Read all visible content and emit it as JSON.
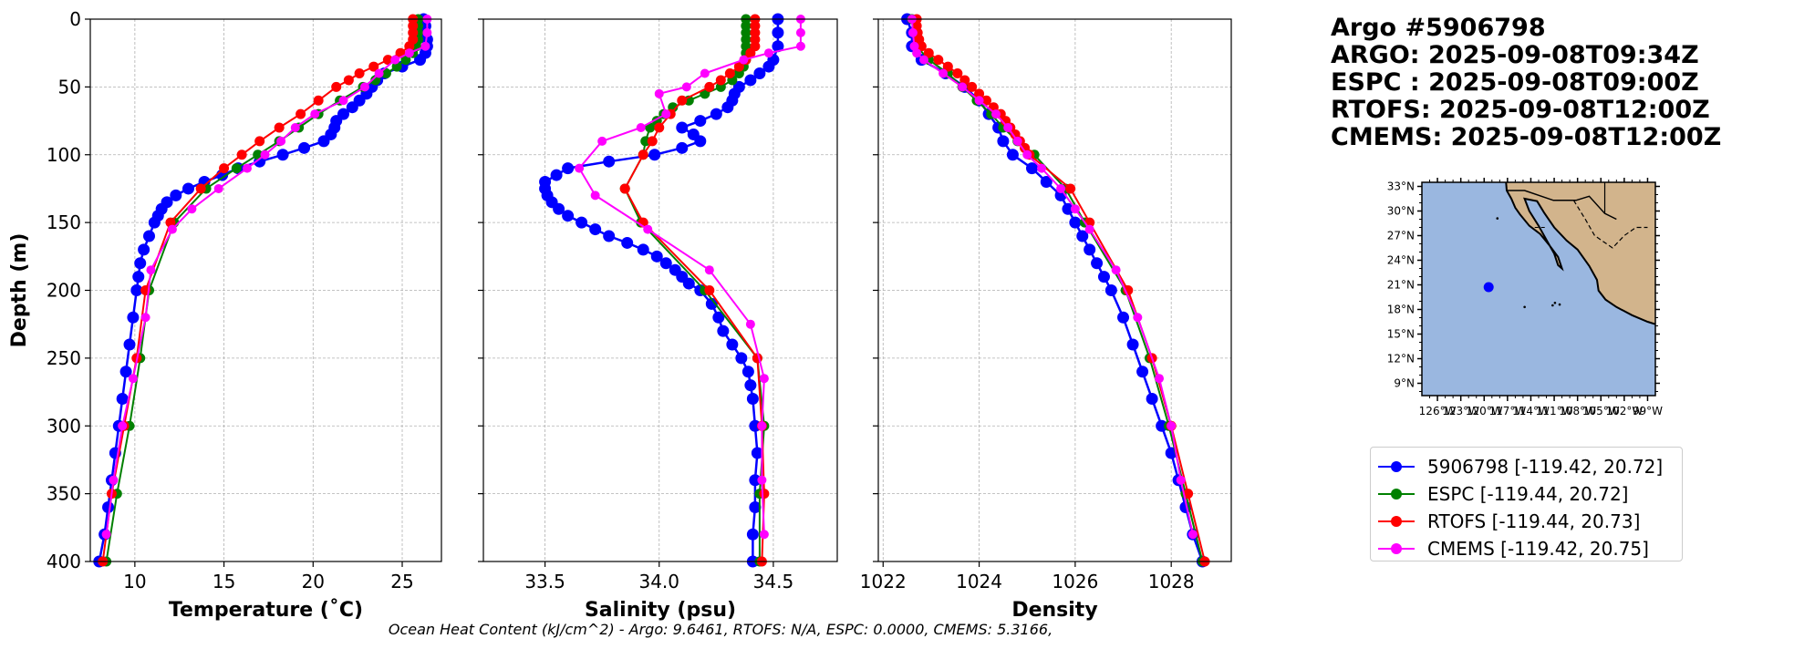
{
  "header": {
    "lines": [
      "Argo #5906798",
      "ARGO: 2025-09-08T09:34Z",
      "ESPC : 2025-09-08T09:00Z",
      "RTOFS: 2025-09-08T12:00Z",
      "CMEMS: 2025-09-08T12:00Z"
    ]
  },
  "footer": {
    "ohc": "Ocean Heat Content (kJ/cm^2) - Argo: 9.6461,  RTOFS: N/A,  ESPC: 0.0000,  CMEMS: 5.3166,"
  },
  "colors": {
    "argo": "#0000ff",
    "espc": "#008000",
    "rtofs": "#ff0000",
    "cmems": "#ff00ff",
    "ocean": "#9ab7e0",
    "land": "#d2b48c"
  },
  "legend": [
    {
      "label": "5906798 [-119.42, 20.72]",
      "color": "#0000ff"
    },
    {
      "label": "ESPC [-119.44, 20.72]",
      "color": "#008000"
    },
    {
      "label": "RTOFS [-119.44, 20.73]",
      "color": "#ff0000"
    },
    {
      "label": "CMEMS [-119.42, 20.75]",
      "color": "#ff00ff"
    }
  ],
  "chart_data": [
    {
      "type": "line",
      "panel": "temperature",
      "xlabel": "Temperature (˚C)",
      "ylabel": "Depth (m)",
      "xlim": [
        7.5,
        27.2
      ],
      "ylim": [
        400,
        0
      ],
      "xticks": [
        10,
        15,
        20,
        25
      ],
      "yticks": [
        0,
        50,
        100,
        150,
        200,
        250,
        300,
        350,
        400
      ],
      "grid": true,
      "series": [
        {
          "name": "5906798",
          "color": "#0000ff",
          "depth": [
            0,
            5,
            10,
            15,
            20,
            25,
            30,
            35,
            40,
            45,
            50,
            55,
            60,
            65,
            70,
            75,
            80,
            85,
            90,
            95,
            100,
            105,
            110,
            115,
            120,
            125,
            130,
            135,
            140,
            145,
            150,
            160,
            170,
            180,
            190,
            200,
            220,
            240,
            260,
            280,
            300,
            320,
            340,
            360,
            380,
            400
          ],
          "values": [
            26.2,
            26.3,
            26.3,
            26.4,
            26.4,
            26.3,
            26.0,
            25.0,
            24.0,
            23.6,
            23.3,
            23.0,
            22.6,
            22.2,
            21.7,
            21.3,
            21.2,
            21.0,
            20.6,
            19.5,
            18.3,
            17.0,
            15.8,
            14.9,
            13.9,
            13.0,
            12.3,
            11.8,
            11.5,
            11.3,
            11.1,
            10.8,
            10.5,
            10.3,
            10.2,
            10.1,
            9.9,
            9.7,
            9.5,
            9.3,
            9.1,
            8.9,
            8.7,
            8.5,
            8.3,
            8.0
          ]
        },
        {
          "name": "ESPC",
          "color": "#008000",
          "depth": [
            0,
            5,
            10,
            15,
            20,
            25,
            30,
            35,
            40,
            45,
            50,
            60,
            70,
            80,
            90,
            100,
            110,
            125,
            150,
            200,
            250,
            300,
            350,
            400
          ],
          "values": [
            25.9,
            25.9,
            25.9,
            25.9,
            25.8,
            25.6,
            25.2,
            24.7,
            24.1,
            23.5,
            22.8,
            21.5,
            20.3,
            19.2,
            18.1,
            16.9,
            15.7,
            14.0,
            12.2,
            10.8,
            10.3,
            9.7,
            9.0,
            8.4
          ]
        },
        {
          "name": "RTOFS",
          "color": "#ff0000",
          "depth": [
            0,
            5,
            10,
            15,
            20,
            25,
            30,
            35,
            40,
            45,
            50,
            60,
            70,
            80,
            90,
            100,
            110,
            125,
            150,
            200,
            250,
            300,
            350,
            400
          ],
          "values": [
            25.6,
            25.6,
            25.6,
            25.6,
            25.4,
            24.9,
            24.2,
            23.4,
            22.6,
            22.0,
            21.3,
            20.3,
            19.3,
            18.1,
            17.0,
            16.0,
            15.0,
            13.7,
            12.0,
            10.6,
            10.1,
            9.4,
            8.7,
            8.2
          ]
        },
        {
          "name": "CMEMS",
          "color": "#ff00ff",
          "depth": [
            0,
            10,
            20,
            25,
            30,
            40,
            50,
            60,
            70,
            80,
            90,
            100,
            110,
            125,
            140,
            155,
            185,
            220,
            265,
            300,
            340,
            380
          ],
          "values": [
            26.4,
            26.4,
            26.3,
            25.4,
            24.6,
            23.7,
            22.9,
            21.7,
            20.1,
            19.0,
            18.2,
            17.3,
            16.3,
            14.7,
            13.2,
            12.1,
            10.9,
            10.6,
            9.9,
            9.3,
            8.8,
            8.4
          ]
        }
      ]
    },
    {
      "type": "line",
      "panel": "salinity",
      "xlabel": "Salinity (psu)",
      "xlim": [
        33.23,
        34.78
      ],
      "ylim": [
        400,
        0
      ],
      "xticks": [
        33.5,
        34.0,
        34.5
      ],
      "grid": true,
      "series": [
        {
          "name": "5906798",
          "color": "#0000ff",
          "depth": [
            0,
            10,
            20,
            30,
            35,
            40,
            45,
            50,
            55,
            60,
            65,
            70,
            75,
            80,
            85,
            90,
            95,
            100,
            105,
            110,
            115,
            120,
            125,
            130,
            135,
            140,
            145,
            150,
            155,
            160,
            165,
            170,
            175,
            180,
            185,
            190,
            195,
            200,
            210,
            220,
            230,
            240,
            250,
            260,
            270,
            280,
            300,
            320,
            340,
            360,
            380,
            400
          ],
          "values": [
            34.52,
            34.52,
            34.52,
            34.5,
            34.48,
            34.44,
            34.4,
            34.35,
            34.33,
            34.32,
            34.3,
            34.25,
            34.18,
            34.1,
            34.15,
            34.18,
            34.1,
            33.98,
            33.78,
            33.6,
            33.55,
            33.5,
            33.5,
            33.51,
            33.53,
            33.56,
            33.6,
            33.66,
            33.72,
            33.78,
            33.86,
            33.93,
            33.99,
            34.03,
            34.07,
            34.1,
            34.13,
            34.18,
            34.23,
            34.26,
            34.28,
            34.32,
            34.36,
            34.39,
            34.4,
            34.41,
            34.42,
            34.43,
            34.42,
            34.42,
            34.41,
            34.41
          ]
        },
        {
          "name": "ESPC",
          "color": "#008000",
          "depth": [
            0,
            5,
            10,
            15,
            20,
            25,
            30,
            35,
            40,
            45,
            50,
            55,
            60,
            65,
            70,
            75,
            80,
            90,
            100,
            125,
            150,
            200,
            250,
            300,
            350,
            400
          ],
          "values": [
            34.38,
            34.38,
            34.38,
            34.38,
            34.38,
            34.38,
            34.38,
            34.37,
            34.35,
            34.32,
            34.27,
            34.2,
            34.13,
            34.06,
            34.02,
            33.99,
            33.96,
            33.94,
            33.93,
            33.85,
            33.92,
            34.2,
            34.43,
            34.46,
            34.44,
            34.44
          ]
        },
        {
          "name": "RTOFS",
          "color": "#ff0000",
          "depth": [
            0,
            5,
            10,
            15,
            20,
            25,
            30,
            35,
            40,
            45,
            50,
            60,
            70,
            80,
            90,
            100,
            125,
            150,
            200,
            250,
            300,
            350,
            400
          ],
          "values": [
            34.42,
            34.42,
            34.42,
            34.42,
            34.42,
            34.4,
            34.38,
            34.35,
            34.31,
            34.27,
            34.22,
            34.1,
            34.05,
            34.0,
            33.97,
            33.93,
            33.85,
            33.93,
            34.22,
            34.43,
            34.45,
            34.46,
            34.45
          ]
        },
        {
          "name": "CMEMS",
          "color": "#ff00ff",
          "depth": [
            0,
            10,
            20,
            25,
            30,
            40,
            50,
            55,
            70,
            80,
            90,
            110,
            130,
            155,
            185,
            225,
            265,
            300,
            340,
            380
          ],
          "values": [
            34.62,
            34.62,
            34.62,
            34.48,
            34.37,
            34.2,
            34.12,
            34.0,
            34.03,
            33.92,
            33.75,
            33.65,
            33.72,
            33.95,
            34.22,
            34.4,
            34.46,
            34.45,
            34.45,
            34.46
          ]
        }
      ]
    },
    {
      "type": "line",
      "panel": "density",
      "xlabel": "Density",
      "xlim": [
        1021.9,
        1029.25
      ],
      "ylim": [
        400,
        0
      ],
      "xticks": [
        1022,
        1024,
        1026,
        1028
      ],
      "grid": true,
      "series": [
        {
          "name": "5906798",
          "color": "#0000ff",
          "depth": [
            0,
            10,
            20,
            30,
            40,
            50,
            60,
            70,
            80,
            90,
            100,
            110,
            120,
            130,
            140,
            150,
            160,
            170,
            180,
            190,
            200,
            220,
            240,
            260,
            280,
            300,
            320,
            340,
            360,
            380,
            400
          ],
          "values": [
            1022.5,
            1022.6,
            1022.6,
            1022.8,
            1023.3,
            1023.7,
            1024.0,
            1024.2,
            1024.4,
            1024.5,
            1024.7,
            1025.1,
            1025.4,
            1025.7,
            1025.85,
            1026.0,
            1026.15,
            1026.3,
            1026.45,
            1026.6,
            1026.75,
            1027.0,
            1027.2,
            1027.4,
            1027.6,
            1027.8,
            1028.0,
            1028.15,
            1028.3,
            1028.45,
            1028.65
          ]
        },
        {
          "name": "ESPC",
          "color": "#008000",
          "depth": [
            0,
            10,
            20,
            30,
            40,
            50,
            60,
            70,
            80,
            90,
            100,
            125,
            150,
            200,
            250,
            300,
            350,
            400
          ],
          "values": [
            1022.6,
            1022.65,
            1022.7,
            1022.95,
            1023.35,
            1023.65,
            1023.95,
            1024.25,
            1024.5,
            1024.8,
            1025.15,
            1025.8,
            1026.2,
            1027.05,
            1027.55,
            1027.95,
            1028.3,
            1028.65
          ]
        },
        {
          "name": "RTOFS",
          "color": "#ff0000",
          "depth": [
            0,
            5,
            10,
            15,
            20,
            25,
            30,
            35,
            40,
            45,
            50,
            55,
            60,
            65,
            70,
            75,
            80,
            85,
            90,
            95,
            100,
            125,
            150,
            200,
            250,
            300,
            350,
            400
          ],
          "values": [
            1022.7,
            1022.7,
            1022.72,
            1022.75,
            1022.8,
            1022.95,
            1023.15,
            1023.35,
            1023.55,
            1023.7,
            1023.85,
            1024.0,
            1024.15,
            1024.3,
            1024.45,
            1024.55,
            1024.65,
            1024.75,
            1024.85,
            1024.95,
            1025.05,
            1025.9,
            1026.3,
            1027.1,
            1027.6,
            1028.0,
            1028.35,
            1028.7
          ]
        },
        {
          "name": "CMEMS",
          "color": "#ff00ff",
          "depth": [
            0,
            10,
            20,
            25,
            30,
            40,
            50,
            60,
            70,
            80,
            90,
            100,
            110,
            125,
            140,
            155,
            185,
            220,
            265,
            300,
            340,
            380
          ],
          "values": [
            1022.6,
            1022.62,
            1022.65,
            1022.7,
            1022.85,
            1023.25,
            1023.65,
            1024.0,
            1024.35,
            1024.6,
            1024.8,
            1025.0,
            1025.3,
            1025.7,
            1026.0,
            1026.3,
            1026.85,
            1027.3,
            1027.75,
            1028.0,
            1028.2,
            1028.45
          ]
        }
      ]
    },
    {
      "type": "map",
      "panel": "location",
      "lat_ticks": [
        "33°N",
        "30°N",
        "27°N",
        "24°N",
        "21°N",
        "18°N",
        "15°N",
        "12°N",
        "9°N"
      ],
      "lon_ticks": [
        "126°W",
        "123°W",
        "120°W",
        "117°W",
        "114°W",
        "111°W",
        "108°W",
        "105°W",
        "102°W",
        "99°W"
      ],
      "lon_range": [
        -128,
        -98
      ],
      "lat_range": [
        7.5,
        33.5
      ],
      "marker": {
        "lon": -119.42,
        "lat": 20.72,
        "color": "#0000ff"
      }
    }
  ]
}
